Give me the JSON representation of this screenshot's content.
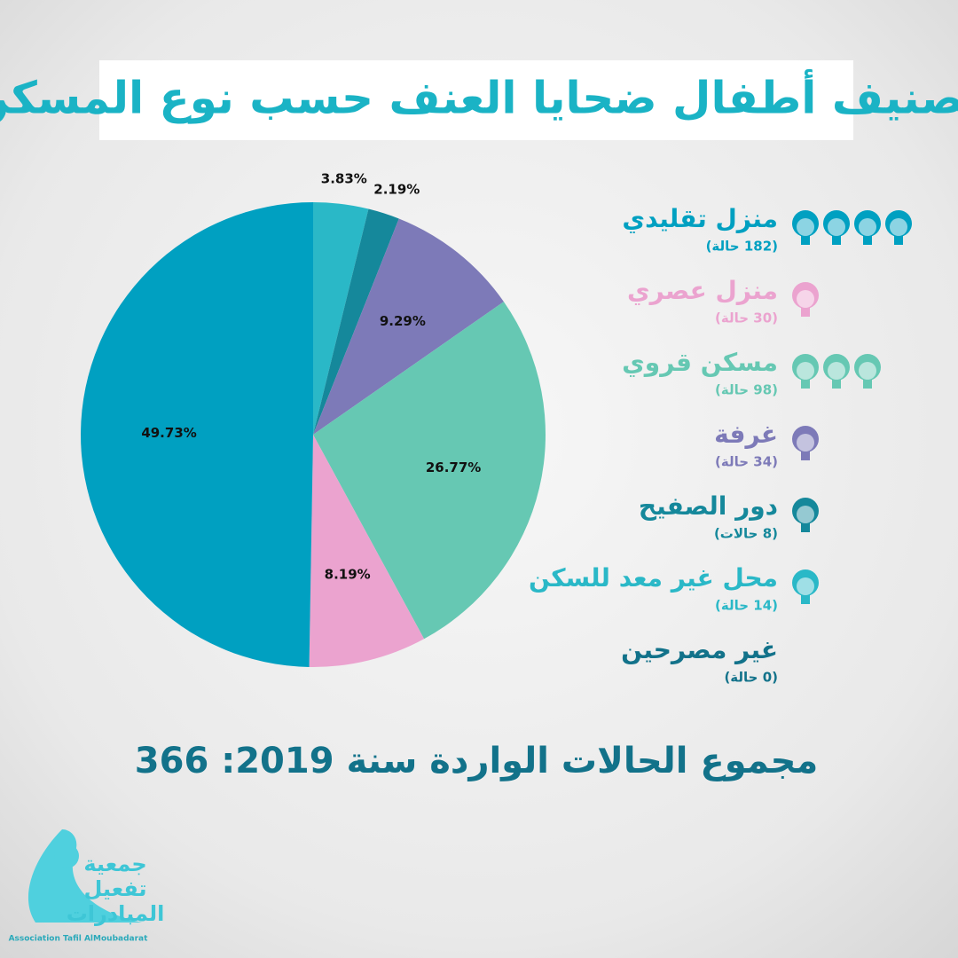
{
  "chart_data": {
    "type": "pie",
    "title": "تصنيف أطفال ضحايا العنف حسب نوع المسكن",
    "categories": [
      "محل غير معد للسكن",
      "دور الصفيح",
      "غرفة",
      "مسكن قروي",
      "منزل عصري",
      "منزل تقليدي",
      "غير مصرحين"
    ],
    "category_notes": [
      "(14 حالة)",
      "(8 حالات)",
      "(34 حالة)",
      "(98 حالة)",
      "(30 حالة)",
      "(182 حالة)",
      "(0 حالة)"
    ],
    "values": [
      3.83,
      2.19,
      9.29,
      26.77,
      8.19,
      49.73,
      0
    ],
    "value_labels": [
      "3.83%",
      "2.19%",
      "9.29%",
      "26.77%",
      "8.19%",
      "49.73%",
      null
    ],
    "colors": [
      "#2ab8c7",
      "#15889b",
      "#7d7ab8",
      "#66c8b3",
      "#eba3cf",
      "#00a0c1",
      "#12728a"
    ],
    "total": "مجموع الحالات الواردة سنة 2019: 366",
    "logo": {
      "name_lines": [
        "جمعية",
        "تفعيل",
        "المبادرات"
      ],
      "english": "Association Tafil AlMoubadarat"
    }
  }
}
